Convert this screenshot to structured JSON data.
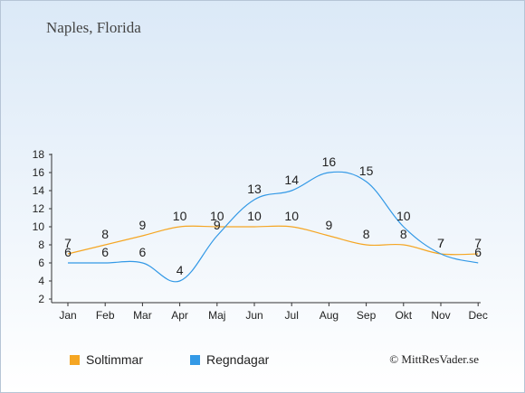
{
  "title": "Naples, Florida",
  "copyright": "© MittResVader.se",
  "chart_data": {
    "type": "line",
    "categories": [
      "Jan",
      "Feb",
      "Mar",
      "Apr",
      "Maj",
      "Jun",
      "Jul",
      "Aug",
      "Sep",
      "Okt",
      "Nov",
      "Dec"
    ],
    "ylim": [
      2,
      18
    ],
    "yticks": [
      2,
      4,
      6,
      8,
      10,
      12,
      14,
      16,
      18
    ],
    "grid": false,
    "legend_position": "bottom-left",
    "series": [
      {
        "name": "Soltimmar",
        "color": "#f5a623",
        "values": [
          7,
          8,
          9,
          10,
          10,
          10,
          10,
          9,
          8,
          8,
          7,
          7
        ]
      },
      {
        "name": "Regndagar",
        "color": "#3399e6",
        "values": [
          6,
          6,
          6,
          4,
          9,
          13,
          14,
          16,
          15,
          10,
          7,
          6
        ]
      }
    ]
  }
}
